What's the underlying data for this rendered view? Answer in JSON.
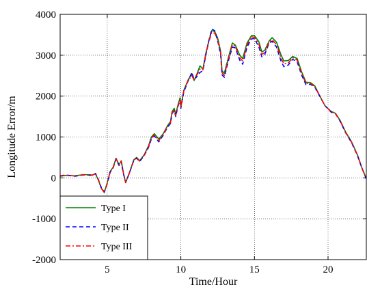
{
  "chart_data": {
    "type": "line",
    "title": "",
    "xlabel": "Time/Hour",
    "ylabel": "Longitude Error/m",
    "xlim": [
      1.8,
      22.6
    ],
    "ylim": [
      -2000,
      4000
    ],
    "xticks": [
      5,
      10,
      15,
      20
    ],
    "yticks": [
      -2000,
      -1000,
      0,
      1000,
      2000,
      3000,
      4000
    ],
    "grid": true,
    "legend_position": "bottom-left",
    "series": [
      {
        "name": "Type I",
        "color": "#008000",
        "dash": "solid",
        "points": [
          [
            1.8,
            40
          ],
          [
            2.2,
            60
          ],
          [
            2.8,
            50
          ],
          [
            3.4,
            80
          ],
          [
            4.0,
            70
          ],
          [
            4.2,
            100
          ],
          [
            4.4,
            -60
          ],
          [
            4.6,
            -260
          ],
          [
            4.8,
            -360
          ],
          [
            5.0,
            -120
          ],
          [
            5.2,
            160
          ],
          [
            5.4,
            260
          ],
          [
            5.6,
            480
          ],
          [
            5.8,
            320
          ],
          [
            5.95,
            420
          ],
          [
            6.1,
            120
          ],
          [
            6.25,
            -120
          ],
          [
            6.5,
            120
          ],
          [
            6.8,
            440
          ],
          [
            7.0,
            500
          ],
          [
            7.2,
            420
          ],
          [
            7.5,
            560
          ],
          [
            7.8,
            780
          ],
          [
            8.0,
            1000
          ],
          [
            8.2,
            1080
          ],
          [
            8.5,
            950
          ],
          [
            8.8,
            1080
          ],
          [
            9.1,
            1280
          ],
          [
            9.3,
            1380
          ],
          [
            9.4,
            1620
          ],
          [
            9.55,
            1700
          ],
          [
            9.65,
            1550
          ],
          [
            9.8,
            1780
          ],
          [
            9.95,
            1960
          ],
          [
            10.0,
            1740
          ],
          [
            10.2,
            2140
          ],
          [
            10.5,
            2400
          ],
          [
            10.75,
            2550
          ],
          [
            10.9,
            2380
          ],
          [
            11.1,
            2550
          ],
          [
            11.3,
            2740
          ],
          [
            11.5,
            2660
          ],
          [
            11.7,
            3050
          ],
          [
            11.9,
            3350
          ],
          [
            12.1,
            3600
          ],
          [
            12.3,
            3580
          ],
          [
            12.5,
            3420
          ],
          [
            12.7,
            3100
          ],
          [
            12.8,
            2620
          ],
          [
            12.95,
            2560
          ],
          [
            13.2,
            2900
          ],
          [
            13.5,
            3300
          ],
          [
            13.7,
            3250
          ],
          [
            14.0,
            3000
          ],
          [
            14.2,
            2920
          ],
          [
            14.5,
            3300
          ],
          [
            14.8,
            3480
          ],
          [
            15.0,
            3480
          ],
          [
            15.3,
            3330
          ],
          [
            15.5,
            3080
          ],
          [
            15.7,
            3120
          ],
          [
            16.0,
            3350
          ],
          [
            16.2,
            3430
          ],
          [
            16.5,
            3320
          ],
          [
            16.8,
            3010
          ],
          [
            17.0,
            2860
          ],
          [
            17.3,
            2870
          ],
          [
            17.6,
            2970
          ],
          [
            17.9,
            2920
          ],
          [
            18.2,
            2600
          ],
          [
            18.5,
            2340
          ],
          [
            18.8,
            2330
          ],
          [
            19.1,
            2250
          ],
          [
            19.4,
            2030
          ],
          [
            19.8,
            1760
          ],
          [
            20.2,
            1630
          ],
          [
            20.5,
            1580
          ],
          [
            20.8,
            1420
          ],
          [
            21.2,
            1120
          ],
          [
            21.6,
            880
          ],
          [
            22.0,
            560
          ],
          [
            22.3,
            250
          ],
          [
            22.6,
            -20
          ]
        ]
      },
      {
        "name": "Type II",
        "color": "#0000ff",
        "dash": "6 4",
        "points": [
          [
            1.8,
            50
          ],
          [
            2.2,
            70
          ],
          [
            2.8,
            40
          ],
          [
            3.4,
            70
          ],
          [
            4.0,
            60
          ],
          [
            4.2,
            110
          ],
          [
            4.4,
            -40
          ],
          [
            4.6,
            -240
          ],
          [
            4.8,
            -340
          ],
          [
            5.0,
            -140
          ],
          [
            5.2,
            140
          ],
          [
            5.4,
            240
          ],
          [
            5.6,
            460
          ],
          [
            5.8,
            300
          ],
          [
            5.95,
            400
          ],
          [
            6.1,
            100
          ],
          [
            6.25,
            -110
          ],
          [
            6.5,
            110
          ],
          [
            6.8,
            420
          ],
          [
            7.0,
            480
          ],
          [
            7.2,
            400
          ],
          [
            7.5,
            540
          ],
          [
            7.8,
            740
          ],
          [
            8.0,
            950
          ],
          [
            8.2,
            1030
          ],
          [
            8.5,
            880
          ],
          [
            8.8,
            1040
          ],
          [
            9.1,
            1240
          ],
          [
            9.3,
            1330
          ],
          [
            9.4,
            1570
          ],
          [
            9.55,
            1650
          ],
          [
            9.65,
            1500
          ],
          [
            9.8,
            1740
          ],
          [
            9.95,
            1900
          ],
          [
            10.0,
            1700
          ],
          [
            10.2,
            2100
          ],
          [
            10.5,
            2380
          ],
          [
            10.75,
            2580
          ],
          [
            10.9,
            2400
          ],
          [
            11.1,
            2480
          ],
          [
            11.3,
            2580
          ],
          [
            11.5,
            2620
          ],
          [
            11.7,
            3000
          ],
          [
            11.9,
            3350
          ],
          [
            12.1,
            3640
          ],
          [
            12.3,
            3600
          ],
          [
            12.5,
            3350
          ],
          [
            12.7,
            3020
          ],
          [
            12.8,
            2520
          ],
          [
            12.95,
            2460
          ],
          [
            13.2,
            2820
          ],
          [
            13.5,
            3200
          ],
          [
            13.7,
            3180
          ],
          [
            14.0,
            2880
          ],
          [
            14.2,
            2780
          ],
          [
            14.5,
            3200
          ],
          [
            14.8,
            3400
          ],
          [
            15.0,
            3410
          ],
          [
            15.3,
            3200
          ],
          [
            15.5,
            2960
          ],
          [
            15.7,
            3020
          ],
          [
            16.0,
            3300
          ],
          [
            16.2,
            3340
          ],
          [
            16.5,
            3200
          ],
          [
            16.8,
            2860
          ],
          [
            17.0,
            2720
          ],
          [
            17.3,
            2760
          ],
          [
            17.6,
            2900
          ],
          [
            17.9,
            2840
          ],
          [
            18.2,
            2520
          ],
          [
            18.5,
            2280
          ],
          [
            18.8,
            2290
          ],
          [
            19.1,
            2220
          ],
          [
            19.4,
            2020
          ],
          [
            19.8,
            1760
          ],
          [
            20.2,
            1610
          ],
          [
            20.5,
            1570
          ],
          [
            20.8,
            1400
          ],
          [
            21.2,
            1100
          ],
          [
            21.6,
            860
          ],
          [
            22.0,
            540
          ],
          [
            22.3,
            240
          ],
          [
            22.6,
            -30
          ]
        ]
      },
      {
        "name": "Type III",
        "color": "#ff0000",
        "dash": "7 3 2 3",
        "points": [
          [
            1.8,
            45
          ],
          [
            2.2,
            65
          ],
          [
            2.8,
            45
          ],
          [
            3.4,
            75
          ],
          [
            4.0,
            65
          ],
          [
            4.2,
            105
          ],
          [
            4.4,
            -50
          ],
          [
            4.6,
            -250
          ],
          [
            4.8,
            -350
          ],
          [
            5.0,
            -130
          ],
          [
            5.2,
            150
          ],
          [
            5.4,
            250
          ],
          [
            5.6,
            470
          ],
          [
            5.8,
            310
          ],
          [
            5.95,
            410
          ],
          [
            6.1,
            110
          ],
          [
            6.25,
            -115
          ],
          [
            6.5,
            115
          ],
          [
            6.8,
            430
          ],
          [
            7.0,
            490
          ],
          [
            7.2,
            410
          ],
          [
            7.5,
            550
          ],
          [
            7.8,
            760
          ],
          [
            8.0,
            970
          ],
          [
            8.2,
            1050
          ],
          [
            8.5,
            910
          ],
          [
            8.8,
            1060
          ],
          [
            9.1,
            1260
          ],
          [
            9.3,
            1350
          ],
          [
            9.4,
            1590
          ],
          [
            9.55,
            1670
          ],
          [
            9.65,
            1520
          ],
          [
            9.8,
            1760
          ],
          [
            9.95,
            1930
          ],
          [
            10.0,
            1720
          ],
          [
            10.2,
            2120
          ],
          [
            10.5,
            2390
          ],
          [
            10.75,
            2500
          ],
          [
            10.9,
            2390
          ],
          [
            11.1,
            2520
          ],
          [
            11.3,
            2660
          ],
          [
            11.5,
            2640
          ],
          [
            11.7,
            3020
          ],
          [
            11.9,
            3320
          ],
          [
            12.1,
            3560
          ],
          [
            12.3,
            3540
          ],
          [
            12.5,
            3380
          ],
          [
            12.7,
            3060
          ],
          [
            12.8,
            2570
          ],
          [
            12.95,
            2510
          ],
          [
            13.2,
            2860
          ],
          [
            13.5,
            3260
          ],
          [
            13.7,
            3220
          ],
          [
            14.0,
            2940
          ],
          [
            14.2,
            2860
          ],
          [
            14.5,
            3250
          ],
          [
            14.8,
            3450
          ],
          [
            15.0,
            3440
          ],
          [
            15.3,
            3270
          ],
          [
            15.5,
            3020
          ],
          [
            15.7,
            3070
          ],
          [
            16.0,
            3320
          ],
          [
            16.2,
            3380
          ],
          [
            16.5,
            3260
          ],
          [
            16.8,
            2930
          ],
          [
            17.0,
            2790
          ],
          [
            17.3,
            2810
          ],
          [
            17.6,
            2940
          ],
          [
            17.9,
            2880
          ],
          [
            18.2,
            2560
          ],
          [
            18.5,
            2310
          ],
          [
            18.8,
            2310
          ],
          [
            19.1,
            2235
          ],
          [
            19.4,
            2025
          ],
          [
            19.8,
            1760
          ],
          [
            20.2,
            1620
          ],
          [
            20.5,
            1575
          ],
          [
            20.8,
            1410
          ],
          [
            21.2,
            1110
          ],
          [
            21.6,
            870
          ],
          [
            22.0,
            550
          ],
          [
            22.3,
            245
          ],
          [
            22.6,
            -25
          ]
        ]
      }
    ]
  }
}
